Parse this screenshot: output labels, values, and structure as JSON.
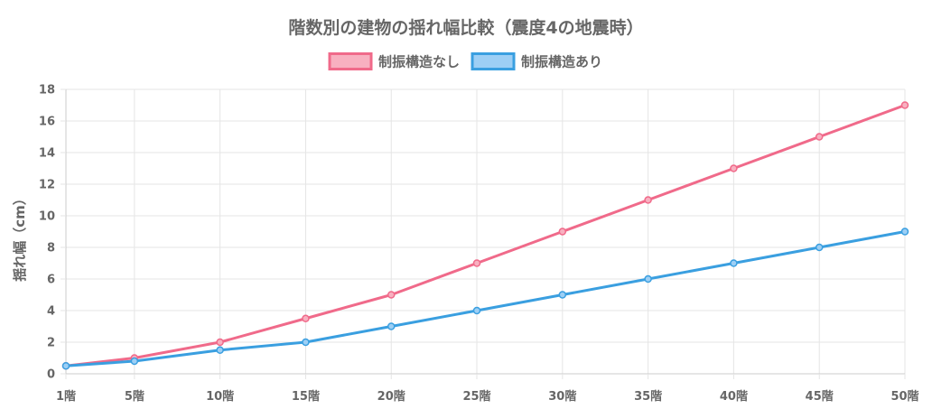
{
  "chart_data": {
    "type": "line",
    "title": "階数別の建物の揺れ幅比較（震度4の地震時）",
    "xlabel": "",
    "ylabel": "揺れ幅（cm）",
    "categories": [
      "1階",
      "5階",
      "10階",
      "15階",
      "20階",
      "25階",
      "30階",
      "35階",
      "40階",
      "45階",
      "50階"
    ],
    "x_positions": [
      1,
      5,
      10,
      15,
      20,
      25,
      30,
      35,
      40,
      45,
      50
    ],
    "ylim": [
      0,
      18
    ],
    "yticks": [
      0,
      2,
      4,
      6,
      8,
      10,
      12,
      14,
      16,
      18
    ],
    "grid": true,
    "legend_position": "top",
    "series": [
      {
        "name": "制振構造なし",
        "color": "#f06a8a",
        "fill": "#f8b0c0",
        "values": [
          0.5,
          1.0,
          2.0,
          3.5,
          5.0,
          7.0,
          9.0,
          11.0,
          13.0,
          15.0,
          17.0
        ]
      },
      {
        "name": "制振構造あり",
        "color": "#3a9fe0",
        "fill": "#9dcff5",
        "values": [
          0.5,
          0.8,
          1.5,
          2.0,
          3.0,
          4.0,
          5.0,
          6.0,
          7.0,
          8.0,
          9.0
        ]
      }
    ]
  }
}
